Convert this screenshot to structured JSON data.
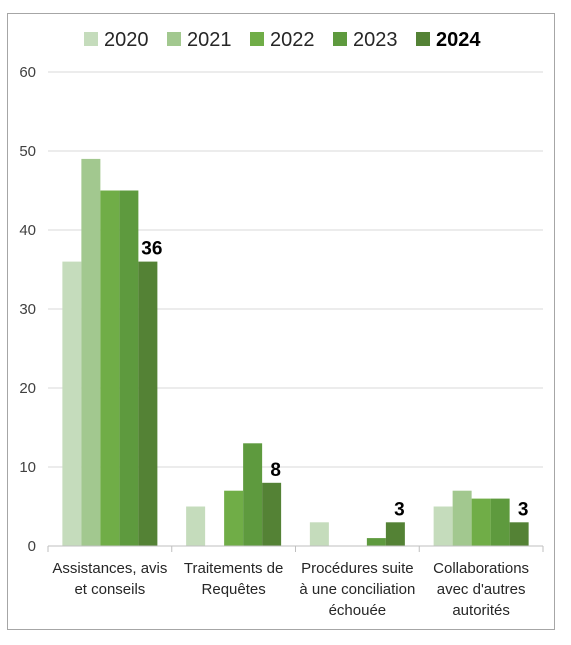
{
  "chart_data": {
    "type": "bar",
    "categories": [
      [
        "Assistances, avis",
        "et conseils"
      ],
      [
        "Traitements de",
        "Requêtes"
      ],
      [
        "Procédures suite",
        "à une conciliation",
        "échouée"
      ],
      [
        "Collaborations",
        "avec d'autres",
        "autorités"
      ]
    ],
    "series": [
      {
        "name": "2020",
        "values": [
          36,
          5,
          3,
          5
        ],
        "color": "#c5dcbc"
      },
      {
        "name": "2021",
        "values": [
          49,
          0,
          0,
          7
        ],
        "color": "#a2c88f"
      },
      {
        "name": "2022",
        "values": [
          45,
          7,
          0,
          6
        ],
        "color": "#70ad47"
      },
      {
        "name": "2023",
        "values": [
          45,
          13,
          1,
          6
        ],
        "color": "#5e9a3e"
      },
      {
        "name": "2024",
        "values": [
          36,
          8,
          3,
          3
        ],
        "color": "#548235",
        "bold": true
      }
    ],
    "data_labels": [
      "36",
      "8",
      "3",
      "3"
    ],
    "ylim": [
      0,
      60
    ],
    "yticks": [
      "0",
      "10",
      "20",
      "30",
      "40",
      "50",
      "60"
    ],
    "grid": true,
    "legend_position": "top",
    "title": "",
    "xlabel": "",
    "ylabel": ""
  }
}
